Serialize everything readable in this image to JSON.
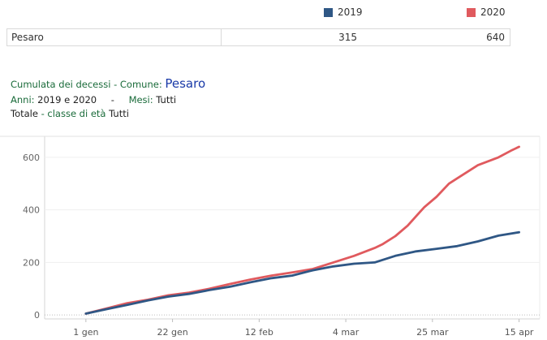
{
  "legend": [
    {
      "label": "2019",
      "color": "#2f5785"
    },
    {
      "label": "2020",
      "color": "#e05a5e"
    }
  ],
  "summary": {
    "name": "Pesaro",
    "value_2019": "315",
    "value_2020": "640"
  },
  "header": {
    "line1_prefix": "Cumulata dei decessi - ",
    "line1_comune_label": "Comune:",
    "line1_comune_value": "Pesaro",
    "line2_anni_label": "Anni:",
    "line2_anni_value": "2019 e 2020",
    "line2_sep": "-",
    "line2_mesi_label": "Mesi:",
    "line2_mesi_value": "Tutti",
    "line3_totale": "Totale",
    "line3_classe_label": " - classe di età ",
    "line3_classe_value": "Tutti"
  },
  "chart_data": {
    "type": "line",
    "title": "",
    "xlabel": "",
    "ylabel": "",
    "x_unit": "days",
    "xlim": [
      -10,
      110
    ],
    "ylim": [
      -15,
      680
    ],
    "yticks": [
      0,
      200,
      400,
      600
    ],
    "xticks": [
      {
        "label": "1 gen",
        "x": 0
      },
      {
        "label": "22 gen",
        "x": 21
      },
      {
        "label": "12 feb",
        "x": 42
      },
      {
        "label": "4 mar",
        "x": 63
      },
      {
        "label": "25 mar",
        "x": 84
      },
      {
        "label": "15 apr",
        "x": 105
      }
    ],
    "grid": true,
    "series": [
      {
        "name": "2019",
        "color": "#2f5785",
        "x": [
          0,
          5,
          10,
          15,
          20,
          25,
          30,
          35,
          40,
          45,
          50,
          55,
          60,
          65,
          70,
          75,
          80,
          85,
          90,
          95,
          100,
          105
        ],
        "y": [
          5,
          22,
          38,
          55,
          70,
          80,
          95,
          108,
          125,
          140,
          150,
          170,
          185,
          195,
          200,
          225,
          242,
          252,
          262,
          280,
          302,
          315
        ]
      },
      {
        "name": "2020",
        "color": "#e05a5e",
        "x": [
          0,
          5,
          10,
          15,
          20,
          25,
          30,
          35,
          40,
          45,
          50,
          55,
          60,
          65,
          70,
          72,
          75,
          78,
          80,
          82,
          85,
          88,
          90,
          95,
          100,
          103,
          105
        ],
        "y": [
          5,
          25,
          45,
          58,
          75,
          85,
          100,
          118,
          135,
          150,
          162,
          175,
          200,
          225,
          255,
          270,
          300,
          340,
          375,
          410,
          450,
          500,
          520,
          570,
          600,
          625,
          640
        ]
      }
    ]
  }
}
